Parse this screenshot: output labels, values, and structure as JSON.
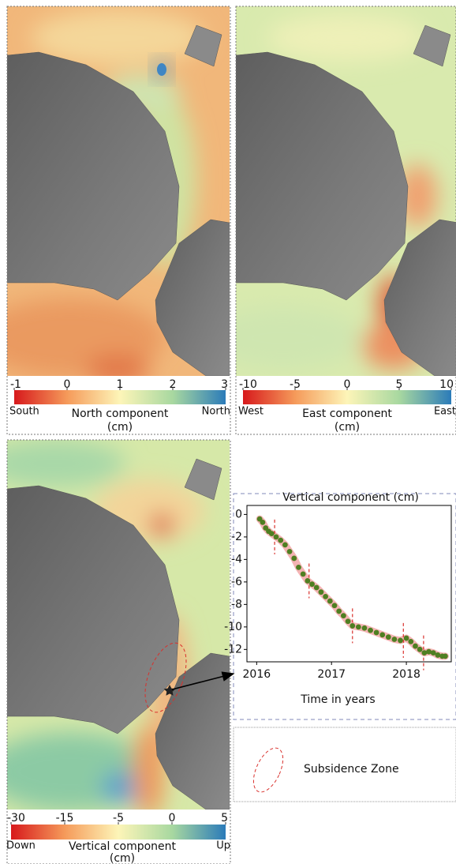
{
  "maps": [
    {
      "colorbar": {
        "ticks": [
          -1,
          0,
          1,
          2,
          3
        ],
        "min_label": "South",
        "max_label": "North",
        "title": [
          "North component",
          "(cm)"
        ]
      }
    },
    {
      "colorbar": {
        "ticks": [
          -10,
          -5,
          0,
          5,
          10
        ],
        "min_label": "West",
        "max_label": "East",
        "title": [
          "East component",
          "(cm)"
        ]
      }
    },
    {
      "colorbar": {
        "ticks": [
          -30,
          -15,
          -5,
          0,
          5
        ],
        "min_label": "Down",
        "max_label": "Up",
        "title": [
          "Vertical component",
          "(cm)"
        ]
      }
    }
  ],
  "chart_data": {
    "type": "scatter",
    "title": "Vertical component (cm)",
    "x_label": "Time in years",
    "x": [
      2016.04,
      2016.08,
      2016.12,
      2016.16,
      2016.2,
      2016.26,
      2016.32,
      2016.38,
      2016.44,
      2016.5,
      2016.56,
      2016.62,
      2016.68,
      2016.74,
      2016.8,
      2016.86,
      2016.92,
      2016.98,
      2017.04,
      2017.1,
      2017.16,
      2017.22,
      2017.28,
      2017.36,
      2017.44,
      2017.52,
      2017.6,
      2017.68,
      2017.76,
      2017.84,
      2017.92,
      2018.0,
      2018.06,
      2018.12,
      2018.18,
      2018.24,
      2018.3,
      2018.36,
      2018.42,
      2018.48,
      2018.52
    ],
    "series": [
      {
        "color": "#4f7f22",
        "band_color": "#f4b4b4",
        "values": [
          -0.4,
          -0.7,
          -1.2,
          -1.5,
          -1.7,
          -2.0,
          -2.3,
          -2.7,
          -3.3,
          -3.9,
          -4.7,
          -5.3,
          -5.9,
          -6.2,
          -6.5,
          -6.9,
          -7.3,
          -7.7,
          -8.1,
          -8.6,
          -9.0,
          -9.5,
          -9.9,
          -10.0,
          -10.1,
          -10.3,
          -10.5,
          -10.7,
          -10.9,
          -11.1,
          -11.2,
          -11.0,
          -11.3,
          -11.7,
          -12.0,
          -12.3,
          -12.2,
          -12.3,
          -12.5,
          -12.6,
          -12.6
        ]
      }
    ],
    "event_lines": [
      2016.24,
      2016.7,
      2017.28,
      2017.96,
      2018.23
    ],
    "event_color": "#d9302c",
    "xlim": [
      2015.87,
      2018.6
    ],
    "ylim": [
      -13.1,
      0.8
    ],
    "xticks": [
      2016,
      2017,
      2018
    ],
    "yticks": [
      0,
      -2,
      -4,
      -6,
      -8,
      -10,
      -12
    ]
  },
  "legend": {
    "label": "Subsidence Zone"
  }
}
